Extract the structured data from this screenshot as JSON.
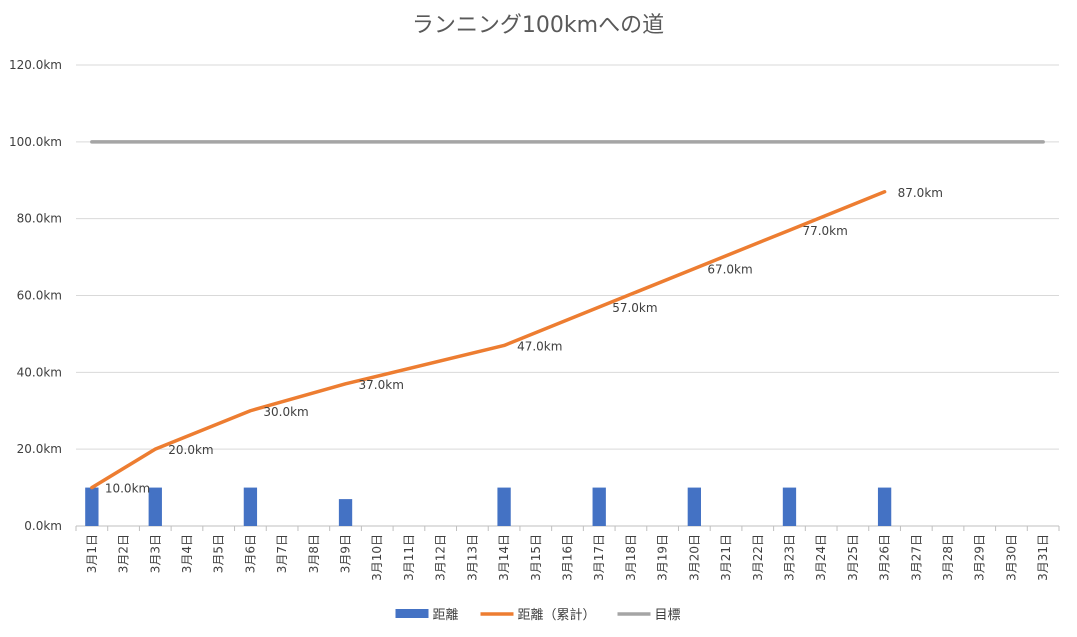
{
  "chart_data": {
    "type": "bar+line",
    "title": "ランニング100kmへの道",
    "categories": [
      "3月1日",
      "3月2日",
      "3月3日",
      "3月4日",
      "3月5日",
      "3月6日",
      "3月7日",
      "3月8日",
      "3月9日",
      "3月10日",
      "3月11日",
      "3月12日",
      "3月13日",
      "3月14日",
      "3月15日",
      "3月16日",
      "3月17日",
      "3月18日",
      "3月19日",
      "3月20日",
      "3月21日",
      "3月22日",
      "3月23日",
      "3月24日",
      "3月25日",
      "3月26日",
      "3月27日",
      "3月28日",
      "3月29日",
      "3月30日",
      "3月31日"
    ],
    "y_ticks": [
      "0.0km",
      "20.0km",
      "40.0km",
      "60.0km",
      "80.0km",
      "100.0km",
      "120.0km"
    ],
    "ylim": [
      0,
      120
    ],
    "grid": true,
    "legend_position": "bottom",
    "series": [
      {
        "name": "距離",
        "type": "bar",
        "color": "#4472C4",
        "values": [
          10,
          null,
          10,
          null,
          null,
          10,
          null,
          null,
          7,
          null,
          null,
          null,
          null,
          10,
          null,
          null,
          10,
          null,
          null,
          10,
          null,
          null,
          10,
          null,
          null,
          10,
          null,
          null,
          null,
          null,
          null
        ]
      },
      {
        "name": "距離（累計）",
        "type": "line",
        "color": "#ED7D31",
        "values": [
          10,
          null,
          20,
          null,
          null,
          30,
          null,
          null,
          37,
          null,
          null,
          null,
          null,
          47,
          null,
          null,
          57,
          null,
          null,
          67,
          null,
          null,
          77,
          null,
          null,
          87,
          null,
          null,
          null,
          null,
          null
        ],
        "data_labels": [
          "10.0km",
          null,
          "20.0km",
          null,
          null,
          "30.0km",
          null,
          null,
          "37.0km",
          null,
          null,
          null,
          null,
          "47.0km",
          null,
          null,
          "57.0km",
          null,
          null,
          "67.0km",
          null,
          null,
          "77.0km",
          null,
          null,
          "87.0km",
          null,
          null,
          null,
          null,
          null
        ]
      },
      {
        "name": "目標",
        "type": "line",
        "color": "#A5A5A5",
        "values": [
          100,
          100,
          100,
          100,
          100,
          100,
          100,
          100,
          100,
          100,
          100,
          100,
          100,
          100,
          100,
          100,
          100,
          100,
          100,
          100,
          100,
          100,
          100,
          100,
          100,
          100,
          100,
          100,
          100,
          100,
          100
        ]
      }
    ]
  }
}
